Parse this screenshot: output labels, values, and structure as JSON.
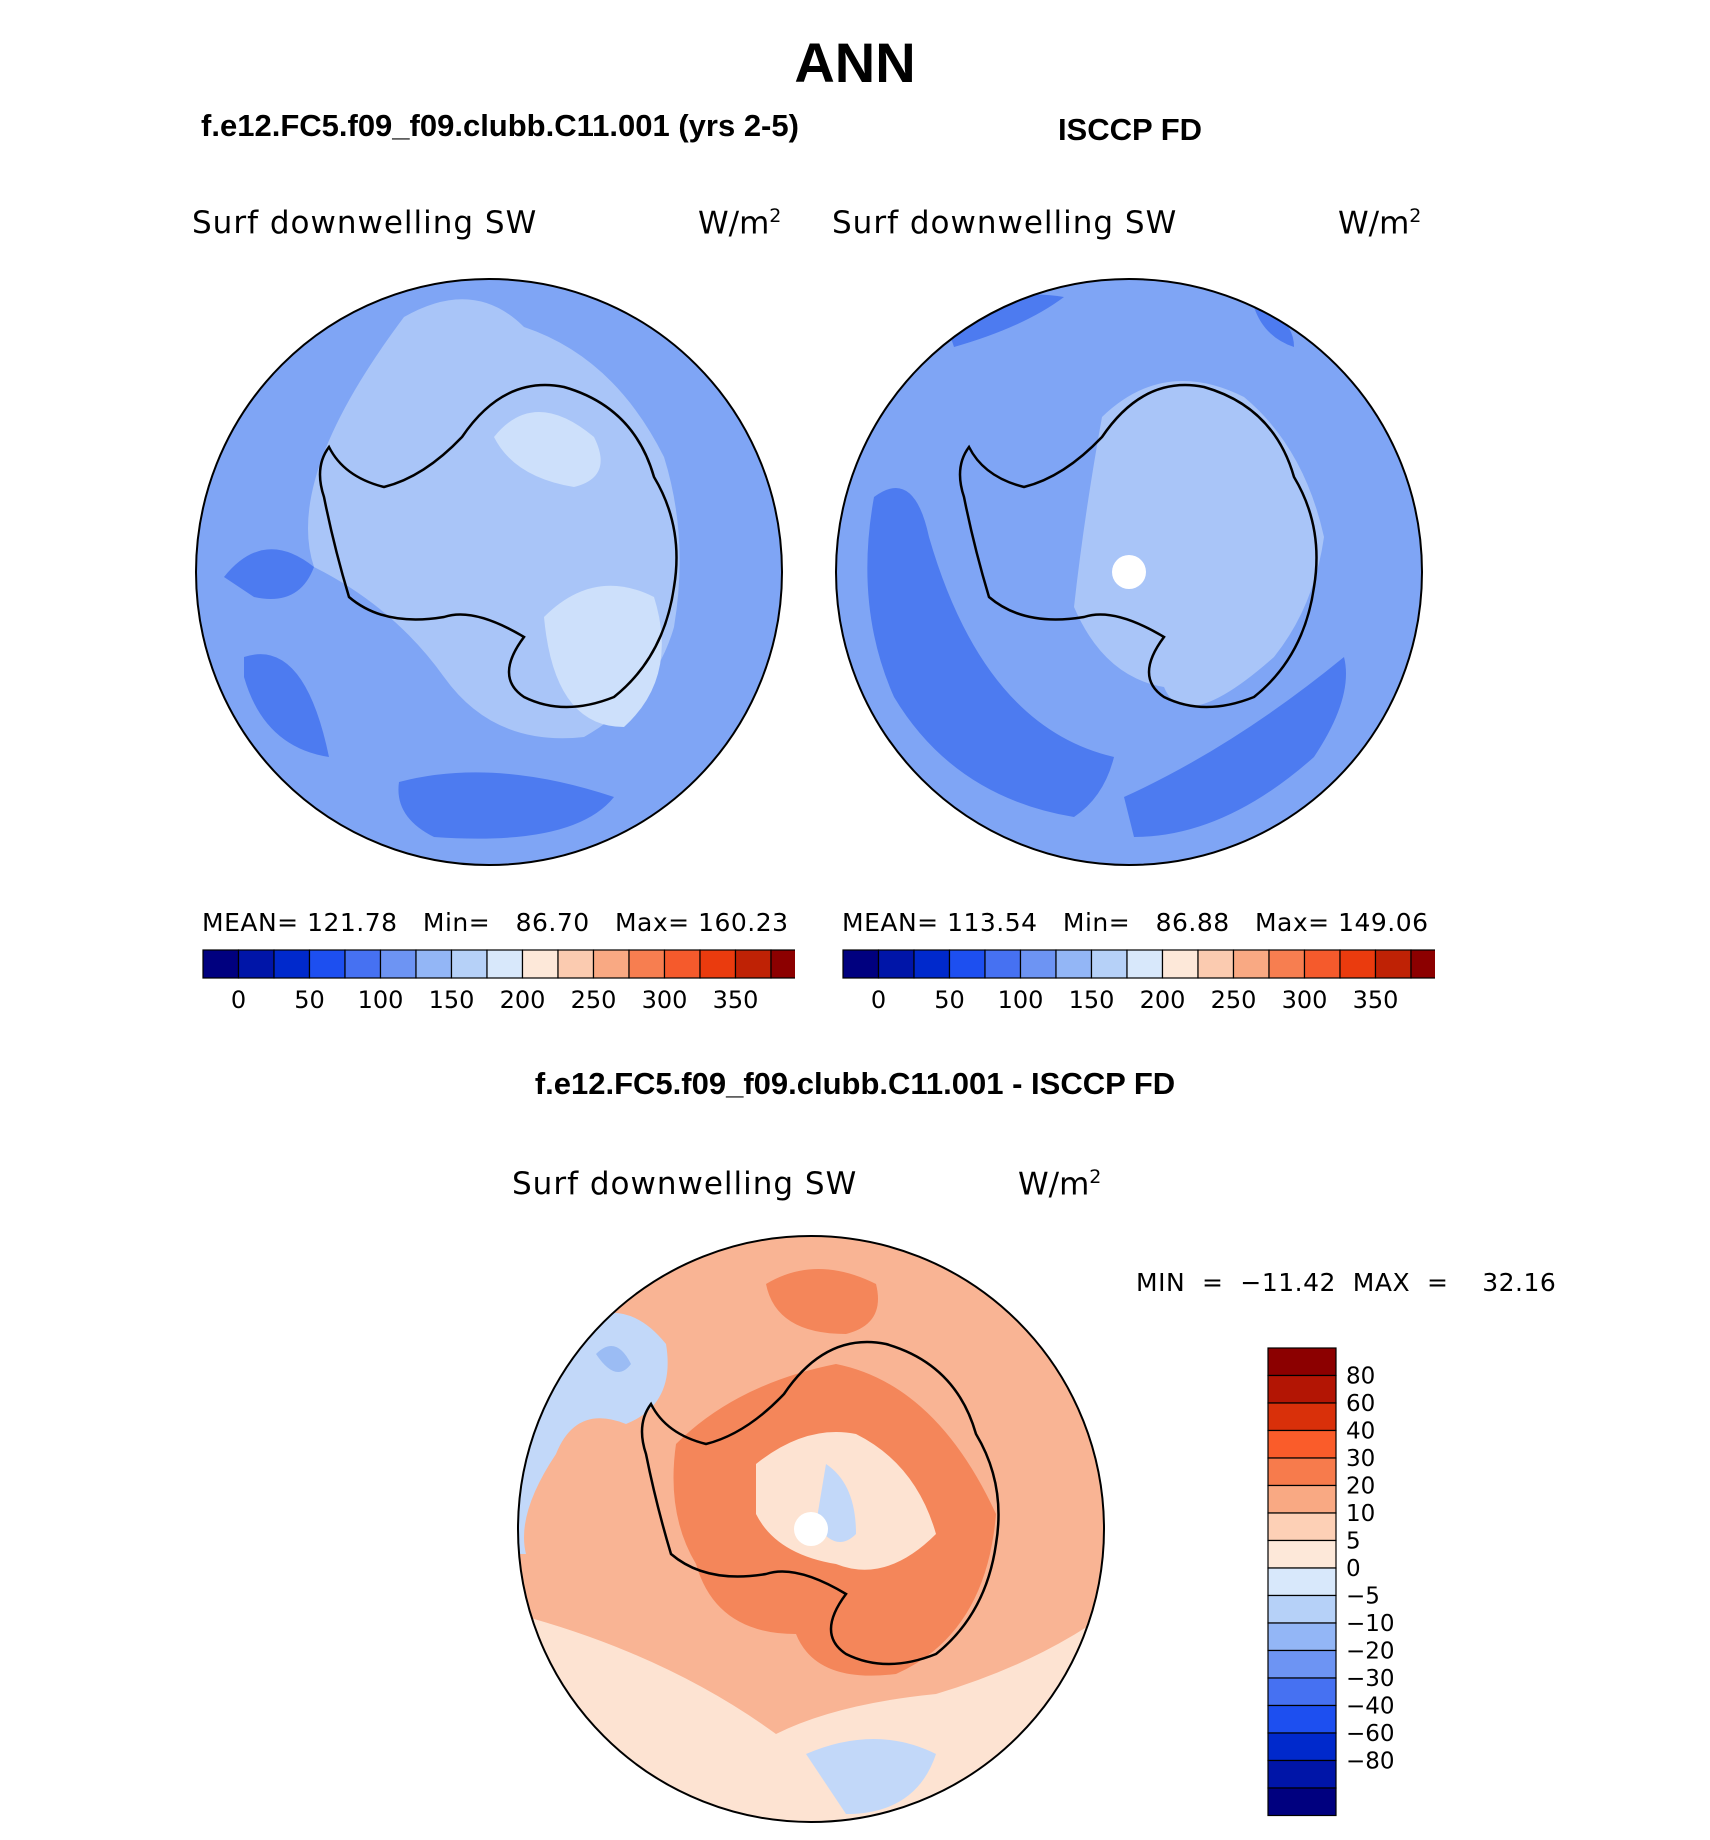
{
  "page": {
    "title": "ANN",
    "left_title": "f.e12.FC5.f09_f09.clubb.C11.001 (yrs 2-5)",
    "right_title": "ISCCP FD",
    "diff_title": "f.e12.FC5.f09_f09.clubb.C11.001 - ISCCP FD"
  },
  "panels": {
    "model": {
      "variable": "Surf  downwelling  SW",
      "units": "W/m",
      "units_exp": "2",
      "mean_label": "MEAN=",
      "mean": "121.78",
      "min_label": "Min=",
      "min": "86.70",
      "max_label": "Max=",
      "max": "160.23"
    },
    "obs": {
      "variable": "Surf  downwelling  SW",
      "units": "W/m",
      "units_exp": "2",
      "mean_label": "MEAN=",
      "mean": "113.54",
      "min_label": "Min=",
      "min": "86.88",
      "max_label": "Max=",
      "max": "149.06"
    },
    "diff": {
      "variable": "Surf  downwelling  SW",
      "units": "W/m",
      "units_exp": "2",
      "minmax_text": "MIN  =  −11.42  MAX  =    32.16"
    }
  },
  "colorbar_abs": {
    "colors": [
      "#00007f",
      "#0015a8",
      "#0029cc",
      "#1d4ff0",
      "#4671f2",
      "#6d94f3",
      "#93b6f6",
      "#b6d1f8",
      "#d8e8fb",
      "#fde8d9",
      "#fbcbb0",
      "#f9a983",
      "#f77e50",
      "#f55a2c",
      "#ea3b0e",
      "#bf2205",
      "#8c0000"
    ],
    "tick_labels": [
      "0",
      "50",
      "100",
      "150",
      "200",
      "250",
      "300",
      "350"
    ]
  },
  "colorbar_diff": {
    "colors_top_to_bottom": [
      "#8c0000",
      "#b31504",
      "#d9300a",
      "#fa5c2a",
      "#f77b4c",
      "#f9a983",
      "#fdd0b6",
      "#fde8d9",
      "#d8e8fb",
      "#b6d1f8",
      "#93b6f6",
      "#6d94f3",
      "#4671f2",
      "#1d4ff0",
      "#0029cc",
      "#0015a8",
      "#00007f"
    ],
    "tick_labels": [
      "80",
      "60",
      "40",
      "30",
      "20",
      "10",
      "5",
      "0",
      "−5",
      "−10",
      "−20",
      "−30",
      "−40",
      "−60",
      "−80"
    ]
  },
  "map_colors": {
    "ocean_mid": "#7fa5f5",
    "ocean_dark": "#4d7bf0",
    "light1": "#a9c5f8",
    "light2": "#cde0fb",
    "diff_base": "#f9b494",
    "diff_pale": "#fde3d2",
    "diff_strong": "#f4865a",
    "diff_neg": "#c2d8f9",
    "diff_neg2": "#9bbcf4",
    "coast": "#000000",
    "pole_hole": "#ffffff"
  }
}
